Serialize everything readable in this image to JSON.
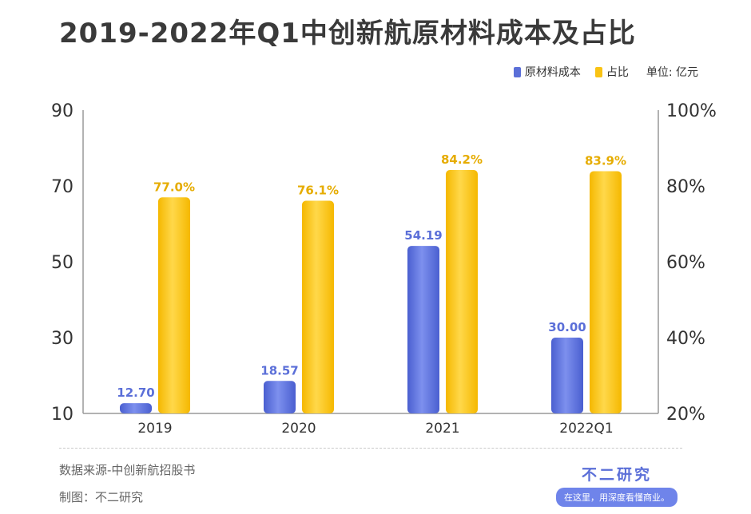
{
  "title": "2019-2022年Q1中创新航原材料成本及占比",
  "legend": {
    "series1": "原材料成本",
    "series2": "占比",
    "unit": "单位: 亿元"
  },
  "colors": {
    "cost": "#5b6fd8",
    "ratio": "#f9c314",
    "ratio_label": "#e6ac00",
    "axis": "#999999"
  },
  "footer": {
    "source": "数据来源-中创新航招股书",
    "maker": "制图：不二研究",
    "brand": "不二研究",
    "slogan": "在这里，用深度看懂商业。"
  },
  "chart_data": {
    "type": "bar",
    "categories": [
      "2019",
      "2020",
      "2021",
      "2022Q1"
    ],
    "series": [
      {
        "name": "原材料成本",
        "axis": "left",
        "values": [
          12.7,
          18.57,
          54.19,
          30.0
        ],
        "labels": [
          "12.70",
          "18.57",
          "54.19",
          "30.00"
        ]
      },
      {
        "name": "占比",
        "axis": "right",
        "values": [
          77.0,
          76.1,
          84.2,
          83.9
        ],
        "labels": [
          "77.0%",
          "76.1%",
          "84.2%",
          "83.9%"
        ]
      }
    ],
    "y_left": {
      "min": 10,
      "max": 90,
      "ticks": [
        10,
        30,
        50,
        70,
        90
      ],
      "tick_labels": [
        "10",
        "30",
        "50",
        "70",
        "90"
      ]
    },
    "y_right": {
      "min": 20,
      "max": 100,
      "ticks": [
        20,
        40,
        60,
        80,
        100
      ],
      "tick_labels": [
        "20%",
        "40%",
        "60%",
        "80%",
        "100%"
      ]
    }
  }
}
